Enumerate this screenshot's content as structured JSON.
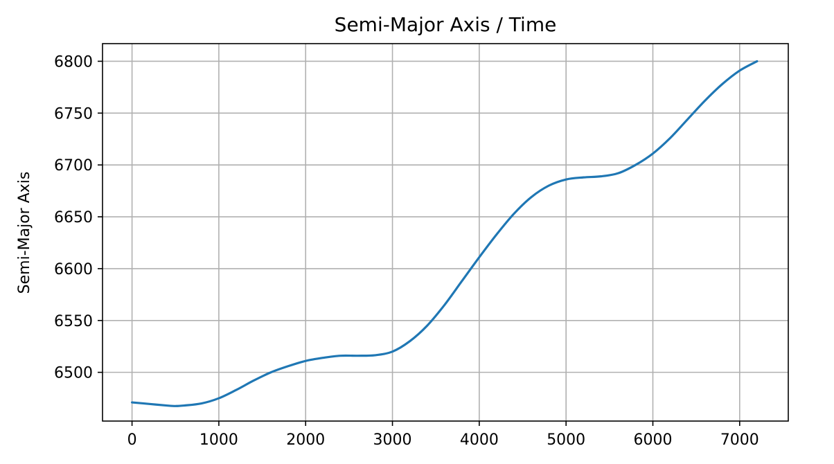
{
  "chart_data": {
    "type": "line",
    "title": "Semi-Major Axis / Time",
    "xlabel": "",
    "ylabel": "Semi-Major Axis",
    "xlim": [
      -340,
      7560
    ],
    "ylim": [
      6453,
      6817
    ],
    "xticks": [
      0,
      1000,
      2000,
      3000,
      4000,
      5000,
      6000,
      7000
    ],
    "yticks": [
      6500,
      6550,
      6600,
      6650,
      6700,
      6750,
      6800
    ],
    "grid": true,
    "legend": "none",
    "colors": {
      "line": "#1f77b4",
      "grid": "#b0b0b0",
      "frame": "#000000"
    },
    "series": [
      {
        "x": [
          0,
          200,
          400,
          500,
          600,
          800,
          1000,
          1200,
          1400,
          1600,
          1800,
          2000,
          2200,
          2400,
          2600,
          2800,
          3000,
          3200,
          3400,
          3600,
          3800,
          4000,
          4200,
          4400,
          4600,
          4800,
          5000,
          5200,
          5400,
          5600,
          5800,
          6000,
          6200,
          6400,
          6600,
          6800,
          7000,
          7200
        ],
        "y": [
          6471,
          6469.5,
          6468,
          6467.5,
          6468,
          6470,
          6475,
          6483,
          6492,
          6500,
          6506,
          6511,
          6514,
          6516,
          6516,
          6516.5,
          6520,
          6530,
          6545,
          6565,
          6588,
          6611,
          6633,
          6653,
          6669,
          6680,
          6686,
          6688,
          6689,
          6692,
          6700,
          6711,
          6726,
          6744,
          6762,
          6778,
          6791,
          6800
        ]
      }
    ]
  }
}
